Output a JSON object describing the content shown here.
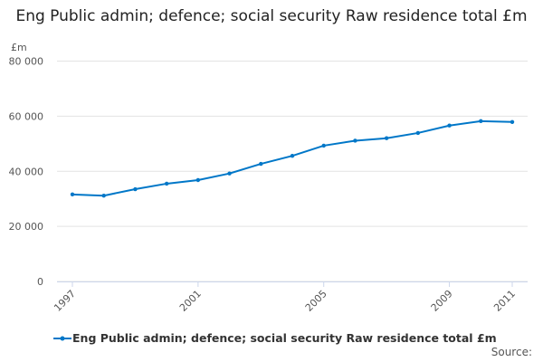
{
  "chart_data": {
    "type": "line",
    "title": "Eng Public admin; defence; social security Raw residence total £m",
    "ylabel": "£m",
    "xlabel": "",
    "ylim": [
      0,
      80000
    ],
    "yticks": [
      0,
      20000,
      40000,
      60000,
      80000
    ],
    "ytick_labels": [
      "0",
      "20 000",
      "40 000",
      "60 000",
      "80 000"
    ],
    "xtick_labels": [
      "1997",
      "2001",
      "2005",
      "2009",
      "2011"
    ],
    "grid": true,
    "legend_placement": "bottom",
    "color": "#0077c8",
    "series": [
      {
        "name": "Eng Public admin; defence; social security Raw residence total £m",
        "x": [
          1997,
          1998,
          1999,
          2000,
          2001,
          2002,
          2003,
          2004,
          2005,
          2006,
          2007,
          2008,
          2009,
          2010,
          2011
        ],
        "values": [
          31600,
          31150,
          33500,
          35500,
          36800,
          39200,
          42700,
          45600,
          49300,
          51100,
          52000,
          53900,
          56600,
          58200,
          57900
        ]
      }
    ]
  },
  "source_label": "Source:"
}
